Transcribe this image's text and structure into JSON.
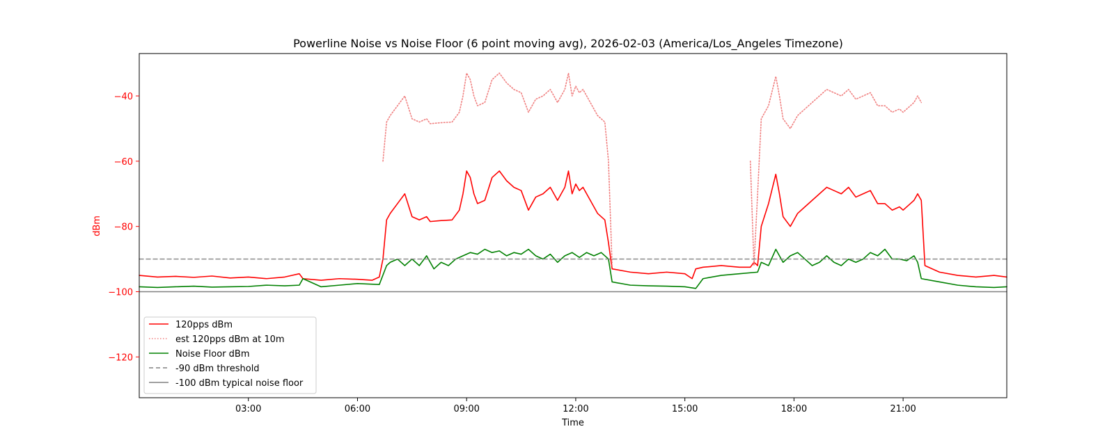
{
  "chart_data": {
    "type": "line",
    "title": "Powerline Noise vs Noise Floor (6 point moving avg), 2026-02-03 (America/Los_Angeles Timezone)",
    "xlabel": "Time",
    "ylabel": "dBm",
    "x_unit": "hours since 00:00",
    "xlim": [
      0,
      23.85
    ],
    "ylim": [
      -132.5,
      -27
    ],
    "xticks": [
      {
        "x": 3,
        "label": "03:00"
      },
      {
        "x": 6,
        "label": "06:00"
      },
      {
        "x": 9,
        "label": "09:00"
      },
      {
        "x": 12,
        "label": "12:00"
      },
      {
        "x": 15,
        "label": "15:00"
      },
      {
        "x": 18,
        "label": "18:00"
      },
      {
        "x": 21,
        "label": "21:00"
      }
    ],
    "yticks": [
      {
        "y": -40,
        "label": "−40"
      },
      {
        "y": -60,
        "label": "−60"
      },
      {
        "y": -80,
        "label": "−80"
      },
      {
        "y": -100,
        "label": "−100"
      },
      {
        "y": -120,
        "label": "−120"
      }
    ],
    "grid": false,
    "legend_position": "lower-left",
    "y_axis_color": "#ff0000",
    "series": [
      {
        "name": "120pps dBm",
        "color": "#ff0000",
        "style": "solid",
        "x": [
          0.0,
          0.5,
          1.0,
          1.5,
          2.0,
          2.5,
          3.0,
          3.5,
          4.0,
          4.4,
          4.5,
          5.0,
          5.5,
          6.0,
          6.4,
          6.6,
          6.7,
          6.8,
          6.9,
          7.1,
          7.3,
          7.5,
          7.7,
          7.9,
          8.0,
          8.3,
          8.6,
          8.8,
          8.9,
          9.0,
          9.1,
          9.2,
          9.3,
          9.5,
          9.7,
          9.9,
          10.1,
          10.3,
          10.5,
          10.7,
          10.9,
          11.1,
          11.3,
          11.5,
          11.7,
          11.8,
          11.9,
          12.0,
          12.1,
          12.2,
          12.4,
          12.6,
          12.8,
          12.9,
          13.0,
          13.5,
          14.0,
          14.5,
          15.0,
          15.2,
          15.3,
          15.5,
          16.0,
          16.5,
          16.8,
          16.9,
          17.0,
          17.1,
          17.3,
          17.5,
          17.6,
          17.7,
          17.9,
          18.1,
          18.3,
          18.5,
          18.7,
          18.9,
          19.1,
          19.3,
          19.5,
          19.7,
          19.9,
          20.1,
          20.3,
          20.5,
          20.7,
          20.9,
          21.0,
          21.2,
          21.3,
          21.4,
          21.5,
          21.6,
          22.0,
          22.5,
          23.0,
          23.5,
          23.85
        ],
        "y": [
          -95,
          -95.5,
          -95.3,
          -95.6,
          -95.2,
          -95.8,
          -95.5,
          -96,
          -95.5,
          -94.5,
          -96,
          -96.5,
          -96,
          -96.2,
          -96.5,
          -95.5,
          -90,
          -78,
          -76,
          -73,
          -70,
          -77,
          -78,
          -77,
          -78.5,
          -78.2,
          -78,
          -75,
          -70,
          -63,
          -65,
          -70,
          -73,
          -72,
          -65,
          -63,
          -66,
          -68,
          -69,
          -75,
          -71,
          -70,
          -68,
          -72,
          -68,
          -63,
          -70,
          -67,
          -69,
          -68,
          -72,
          -76,
          -78,
          -85,
          -93,
          -94,
          -94.5,
          -94,
          -94.5,
          -96,
          -93,
          -92.5,
          -92,
          -92.5,
          -92.5,
          -91,
          -92,
          -80,
          -73,
          -64,
          -70,
          -77,
          -80,
          -76,
          -74,
          -72,
          -70,
          -68,
          -69,
          -70,
          -68,
          -71,
          -70,
          -69,
          -73,
          -73,
          -75,
          -74,
          -75,
          -73,
          -72,
          -70,
          -72,
          -92,
          -94,
          -95,
          -95.5,
          -95,
          -95.5
        ]
      },
      {
        "name": "est 120pps dBm at 10m",
        "color": "#f08080",
        "style": "dotted",
        "x": [
          0.0,
          6.6,
          6.7,
          6.8,
          6.9,
          7.1,
          7.3,
          7.5,
          7.7,
          7.9,
          8.0,
          8.3,
          8.6,
          8.8,
          8.9,
          9.0,
          9.1,
          9.2,
          9.3,
          9.5,
          9.7,
          9.9,
          10.1,
          10.3,
          10.5,
          10.7,
          10.9,
          11.1,
          11.3,
          11.5,
          11.7,
          11.8,
          11.9,
          12.0,
          12.1,
          12.2,
          12.4,
          12.6,
          12.8,
          12.9,
          13.0,
          16.7,
          16.8,
          16.9,
          17.0,
          17.1,
          17.3,
          17.5,
          17.6,
          17.7,
          17.9,
          18.1,
          18.3,
          18.5,
          18.7,
          18.9,
          19.1,
          19.3,
          19.5,
          19.7,
          19.9,
          20.1,
          20.3,
          20.5,
          20.7,
          20.9,
          21.0,
          21.2,
          21.3,
          21.4,
          21.5
        ],
        "y": [
          null,
          null,
          -60,
          -48,
          -46,
          -43,
          -40,
          -47,
          -48,
          -47,
          -48.5,
          -48.2,
          -48,
          -45,
          -40,
          -33,
          -35,
          -40,
          -43,
          -42,
          -35,
          -33,
          -36,
          -38,
          -39,
          -45,
          -41,
          -40,
          -38,
          -42,
          -38,
          -33,
          -40,
          -37,
          -39,
          -38,
          -42,
          -46,
          -48,
          -60,
          -92,
          null,
          -60,
          -92,
          -70,
          -47,
          -43,
          -34,
          -40,
          -47,
          -50,
          -46,
          -44,
          -42,
          -40,
          -38,
          -39,
          -40,
          -38,
          -41,
          -40,
          -39,
          -43,
          -43,
          -45,
          -44,
          -45,
          -43,
          -42,
          -40,
          -42
        ]
      },
      {
        "name": "Noise Floor dBm",
        "color": "#008000",
        "style": "solid",
        "x": [
          0.0,
          0.5,
          1.0,
          1.5,
          2.0,
          2.5,
          3.0,
          3.5,
          4.0,
          4.4,
          4.5,
          5.0,
          5.5,
          6.0,
          6.6,
          6.8,
          6.9,
          7.1,
          7.3,
          7.5,
          7.7,
          7.9,
          8.1,
          8.3,
          8.5,
          8.7,
          8.9,
          9.1,
          9.3,
          9.5,
          9.7,
          9.9,
          10.1,
          10.3,
          10.5,
          10.7,
          10.9,
          11.1,
          11.3,
          11.5,
          11.7,
          11.9,
          12.1,
          12.3,
          12.5,
          12.7,
          12.9,
          13.0,
          13.5,
          14.0,
          14.5,
          15.0,
          15.3,
          15.5,
          16.0,
          16.5,
          17.0,
          17.1,
          17.3,
          17.5,
          17.7,
          17.9,
          18.1,
          18.3,
          18.5,
          18.7,
          18.9,
          19.1,
          19.3,
          19.5,
          19.7,
          19.9,
          20.1,
          20.3,
          20.5,
          20.7,
          20.9,
          21.1,
          21.3,
          21.4,
          21.5,
          22.0,
          22.5,
          23.0,
          23.5,
          23.85
        ],
        "y": [
          -98.5,
          -98.7,
          -98.5,
          -98.3,
          -98.6,
          -98.5,
          -98.4,
          -98,
          -98.2,
          -98,
          -96,
          -98.5,
          -98,
          -97.5,
          -97.8,
          -92,
          -91,
          -90,
          -92,
          -90,
          -92,
          -89,
          -93,
          -91,
          -92,
          -90,
          -89,
          -88,
          -88.5,
          -87,
          -88,
          -87.5,
          -89,
          -88,
          -88.5,
          -87,
          -89,
          -90,
          -88.5,
          -91,
          -89,
          -88,
          -89.5,
          -88,
          -89,
          -88,
          -90,
          -97,
          -98,
          -98.2,
          -98.3,
          -98.5,
          -99,
          -96,
          -95,
          -94.5,
          -94,
          -91,
          -92,
          -87,
          -91,
          -89,
          -88,
          -90,
          -92,
          -91,
          -89,
          -91,
          -92,
          -90,
          -91,
          -90,
          -88,
          -89,
          -87,
          -90,
          -90,
          -90.5,
          -89,
          -91,
          -96,
          -97,
          -98,
          -98.5,
          -98.7,
          -98.5
        ]
      },
      {
        "name": "-90 dBm threshold",
        "color": "#808080",
        "style": "dashed",
        "x": [
          0.0,
          23.85
        ],
        "y": [
          -90,
          -90
        ]
      },
      {
        "name": "-100 dBm typical noise floor",
        "color": "#808080",
        "style": "solid",
        "x": [
          0.0,
          23.85
        ],
        "y": [
          -100,
          -100
        ]
      }
    ]
  }
}
